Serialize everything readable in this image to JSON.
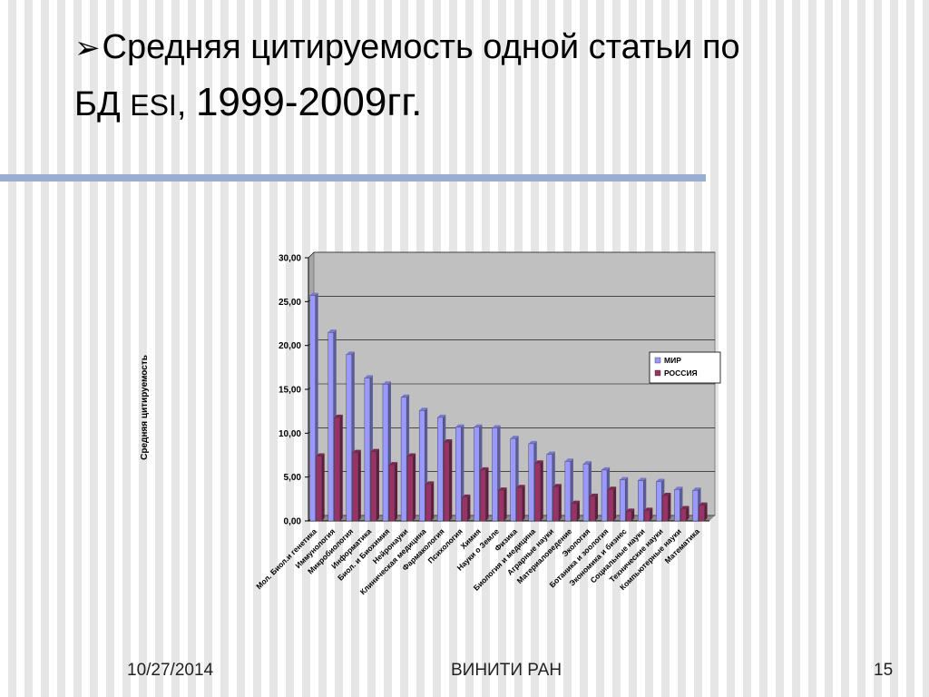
{
  "slide": {
    "bullet": "➢",
    "title_line1": "Средняя цитируемость одной статьи  по",
    "title_line2_prefix": "БД ",
    "title_line2_esi": "ESI",
    "title_line2_comma": ", ",
    "title_line2_years": "1999-2009гг.",
    "date": "10/27/2014",
    "organization": "ВИНИТИ РАН",
    "page_number": "15",
    "accent_color": "#9aaed2"
  },
  "chart_data": {
    "type": "bar",
    "ylabel": "Средняя цитируемость",
    "ylim": [
      0,
      30
    ],
    "yticks": [
      "0,00",
      "5,00",
      "10,00",
      "15,00",
      "20,00",
      "25,00",
      "30,00"
    ],
    "grid": true,
    "legend_position": "right",
    "categories": [
      "Мол. Биол.и генетика",
      "Иммунология",
      "Микробиология",
      "Информатика",
      "Биол. и Биохимия",
      "Нейронауки",
      "Клиническая медицина",
      "Фармакология",
      "Психология",
      "Химия",
      "Науки о Земле",
      "Физика",
      "Биология и медицина",
      "Аграрные науки",
      "Материаловедение",
      "Экология",
      "Ботаника и зоология",
      "Экономика и бизнес",
      "Социальные науки",
      "Технические науки",
      "Компьютерные науки",
      "Математика"
    ],
    "series": [
      {
        "name": "МИР",
        "color": "#9999ff",
        "values": [
          25.7,
          21.5,
          19.0,
          16.3,
          15.6,
          14.1,
          12.6,
          11.8,
          10.7,
          10.7,
          10.6,
          9.4,
          8.8,
          7.6,
          6.8,
          6.5,
          5.8,
          4.7,
          4.6,
          4.5,
          3.6,
          3.5
        ]
      },
      {
        "name": "РОССИЯ",
        "color": "#993366",
        "values": [
          7.4,
          11.8,
          7.8,
          7.9,
          6.4,
          7.4,
          4.2,
          9.0,
          2.7,
          5.8,
          3.5,
          3.8,
          6.6,
          3.9,
          2.0,
          2.8,
          3.6,
          1.1,
          1.2,
          2.9,
          1.4,
          1.8
        ]
      }
    ]
  }
}
